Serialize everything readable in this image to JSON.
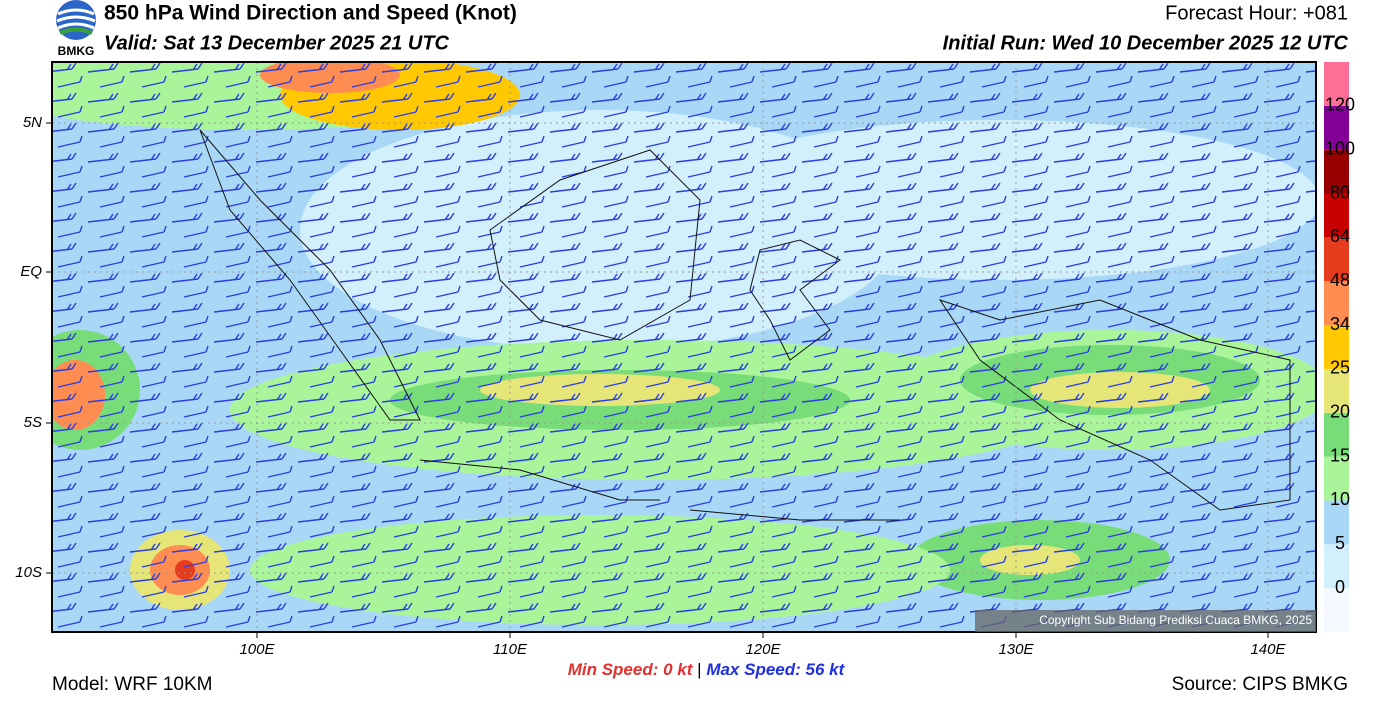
{
  "header": {
    "title": "850 hPa Wind Direction and Speed (Knot)",
    "valid": "Valid: Sat 13 December 2025 21 UTC",
    "forecast_hour": "Forecast Hour: +081",
    "initial_run": "Initial Run: Wed 10 December 2025 12 UTC",
    "logo_text": "BMKG"
  },
  "map": {
    "lat_labels": [
      "5N",
      "EQ",
      "5S",
      "10S"
    ],
    "lon_labels": [
      "100E",
      "110E",
      "120E",
      "130E",
      "140E"
    ],
    "copyright": "Copyright Sub Bidang Prediksi Cuaca BMKG, 2025"
  },
  "colorbar": {
    "labels": [
      "0",
      "5",
      "10",
      "15",
      "20",
      "25",
      "34",
      "48",
      "64",
      "80",
      "100",
      "120"
    ],
    "colors": [
      "#f3f9ff",
      "#d2effc",
      "#a9d8f7",
      "#aaf59a",
      "#78dc78",
      "#e6e678",
      "#ffc800",
      "#ff8c50",
      "#e63c1e",
      "#c80000",
      "#960000",
      "#820096",
      "#ff6e96"
    ]
  },
  "footer": {
    "model": "Model: WRF 10KM",
    "min_label": "Min Speed:",
    "min_value": "0 kt",
    "separator": "|",
    "max_label": "Max Speed:",
    "max_value": "56 kt",
    "source": "Source: CIPS BMKG"
  }
}
